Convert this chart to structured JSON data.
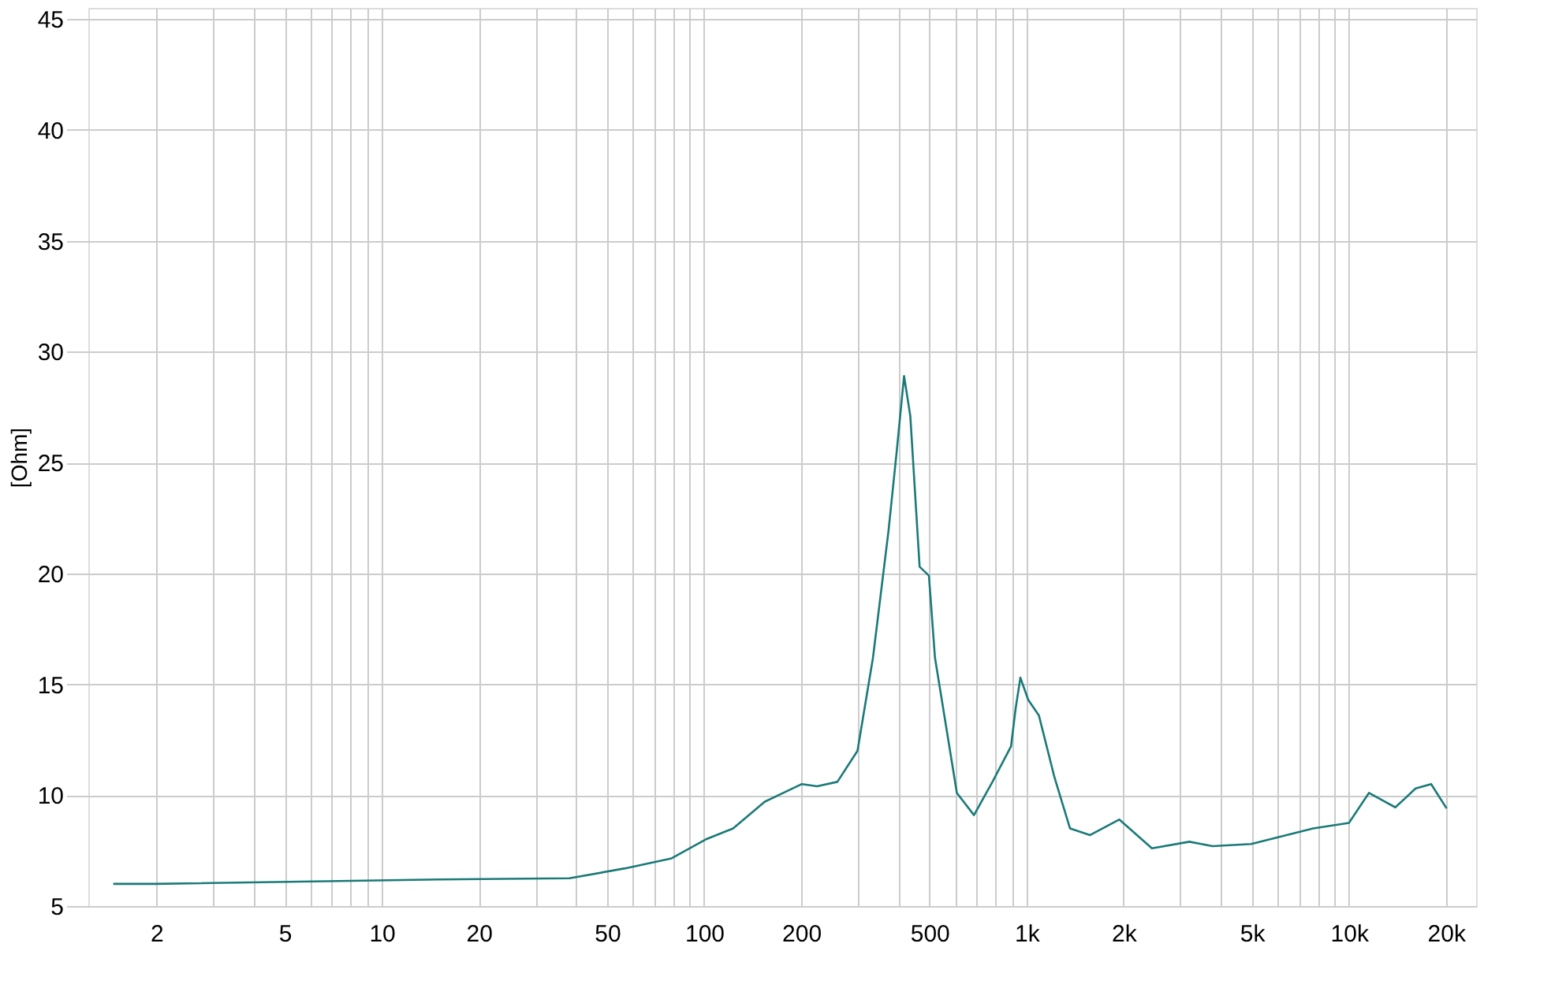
{
  "chart_data": {
    "type": "line",
    "ylabel": "[Ohm]",
    "log": "x",
    "grid": true,
    "marker": "none",
    "line_style": "solid",
    "xlim": [
      1.23,
      24800
    ],
    "ylim": [
      5,
      45.5
    ],
    "yticks": [
      5,
      10,
      15,
      20,
      25,
      30,
      35,
      40,
      45
    ],
    "xticks": [
      {
        "value": 2,
        "label": "2"
      },
      {
        "value": 3,
        "label": null
      },
      {
        "value": 4,
        "label": null
      },
      {
        "value": 5,
        "label": "5"
      },
      {
        "value": 6,
        "label": null
      },
      {
        "value": 7,
        "label": null
      },
      {
        "value": 8,
        "label": null
      },
      {
        "value": 9,
        "label": null
      },
      {
        "value": 10,
        "label": "10"
      },
      {
        "value": 20,
        "label": "20"
      },
      {
        "value": 30,
        "label": null
      },
      {
        "value": 40,
        "label": null
      },
      {
        "value": 50,
        "label": "50"
      },
      {
        "value": 60,
        "label": null
      },
      {
        "value": 70,
        "label": null
      },
      {
        "value": 80,
        "label": null
      },
      {
        "value": 90,
        "label": null
      },
      {
        "value": 100,
        "label": "100"
      },
      {
        "value": 200,
        "label": "200"
      },
      {
        "value": 300,
        "label": null
      },
      {
        "value": 400,
        "label": null
      },
      {
        "value": 500,
        "label": "500"
      },
      {
        "value": 600,
        "label": null
      },
      {
        "value": 700,
        "label": null
      },
      {
        "value": 800,
        "label": null
      },
      {
        "value": 900,
        "label": null
      },
      {
        "value": 1000,
        "label": "1k"
      },
      {
        "value": 2000,
        "label": "2k"
      },
      {
        "value": 3000,
        "label": null
      },
      {
        "value": 4000,
        "label": null
      },
      {
        "value": 5000,
        "label": "5k"
      },
      {
        "value": 6000,
        "label": null
      },
      {
        "value": 7000,
        "label": null
      },
      {
        "value": 8000,
        "label": null
      },
      {
        "value": 9000,
        "label": null
      },
      {
        "value": 10000,
        "label": "10k"
      },
      {
        "value": 20000,
        "label": "20k"
      }
    ],
    "x": [
      1.47,
      1.99,
      15.1,
      38.2,
      56.9,
      79.3,
      101,
      123,
      154,
      201,
      224,
      259,
      299,
      334,
      373,
      395,
      417,
      436,
      466,
      498,
      520,
      608,
      687,
      784,
      895,
      925,
      957,
      1012,
      1092,
      1221,
      1364,
      1575,
      1941,
      2449,
      3199,
      3776,
      4977,
      7745,
      10000,
      11535,
      13930,
      16100,
      17990,
      20090
    ],
    "series": [
      {
        "color": "#1a7a78",
        "values": [
          6.0,
          6.0,
          6.2,
          6.25,
          6.7,
          7.15,
          8.0,
          8.5,
          9.7,
          10.5,
          10.4,
          10.6,
          12.0,
          16.2,
          21.9,
          25.4,
          28.9,
          27.1,
          20.3,
          19.9,
          16.2,
          10.1,
          9.1,
          10.6,
          12.2,
          13.9,
          15.3,
          14.3,
          13.6,
          10.8,
          8.5,
          8.2,
          8.9,
          7.6,
          7.9,
          7.7,
          7.8,
          8.5,
          8.75,
          10.1,
          9.45,
          10.3,
          10.5,
          9.4
        ]
      }
    ]
  }
}
